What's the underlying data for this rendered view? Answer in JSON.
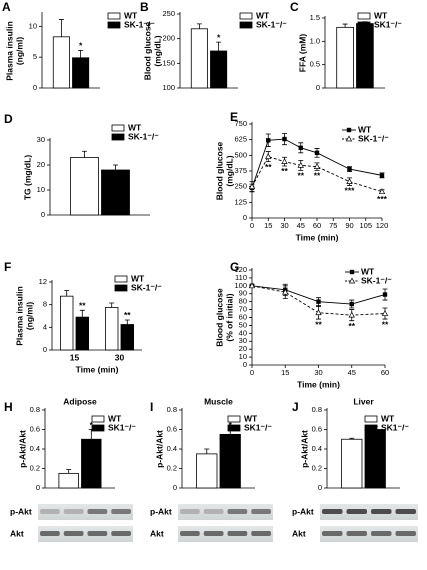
{
  "chart_data": [
    {
      "type": "bar",
      "label": "A",
      "ylabel": [
        "Plasma insulin",
        "(ng/ml)"
      ],
      "ylim": [
        0,
        12
      ],
      "yticks": [
        0,
        5,
        10
      ],
      "series": [
        {
          "name": "WT",
          "color": "#ffffff",
          "values": [
            8.3
          ],
          "errors": [
            2.8
          ],
          "annotations": [
            null
          ]
        },
        {
          "name": "SK-1⁻/⁻",
          "color": "#000000",
          "values": [
            4.9
          ],
          "errors": [
            1.2
          ],
          "annotations": [
            "*"
          ]
        }
      ]
    },
    {
      "type": "bar",
      "label": "B",
      "ylabel": [
        "Blood glucose",
        "(mg/dL)"
      ],
      "ylim": [
        100,
        250
      ],
      "yticks": [
        100,
        150,
        200,
        250
      ],
      "series": [
        {
          "name": "WT",
          "color": "#ffffff",
          "values": [
            220
          ],
          "errors": [
            10
          ],
          "annotations": [
            null
          ]
        },
        {
          "name": "SK-1⁻/⁻",
          "color": "#000000",
          "values": [
            175
          ],
          "errors": [
            18
          ],
          "annotations": [
            "*"
          ]
        }
      ]
    },
    {
      "type": "bar",
      "label": "C",
      "ylabel": [
        "FFA (mM)"
      ],
      "ylim": [
        0,
        1.5
      ],
      "yticks": [
        0,
        0.5,
        {
          "value": 1,
          "label": "1.0"
        },
        1.5
      ],
      "series": [
        {
          "name": "WT",
          "color": "#ffffff",
          "values": [
            1.3
          ],
          "errors": [
            0.07
          ],
          "annotations": [
            null
          ]
        },
        {
          "name": "SK1⁻/⁻",
          "color": "#000000",
          "values": [
            1.38
          ],
          "errors": [
            0.04
          ],
          "annotations": [
            null
          ]
        }
      ]
    },
    {
      "type": "bar",
      "label": "D",
      "ylabel": [
        "TG (mg/dL)"
      ],
      "ylim": [
        0,
        30
      ],
      "yticks": [
        0,
        10,
        20,
        30
      ],
      "series": [
        {
          "name": "WT",
          "color": "#ffffff",
          "values": [
            23
          ],
          "errors": [
            2.5
          ],
          "annotations": [
            null
          ]
        },
        {
          "name": "SK-1⁻/⁻",
          "color": "#000000",
          "values": [
            18
          ],
          "errors": [
            2
          ],
          "annotations": [
            null
          ]
        }
      ]
    },
    {
      "type": "line",
      "label": "E",
      "ylabel": [
        "Blood glucose",
        "(mg/dL)"
      ],
      "xlabel": "Time (min)",
      "x": [
        0,
        15,
        30,
        45,
        60,
        90,
        120
      ],
      "xlim": [
        0,
        120
      ],
      "xticks": [
        0,
        15,
        30,
        45,
        60,
        75,
        90,
        105,
        120
      ],
      "ylim": [
        0,
        750
      ],
      "yticks": [
        0,
        125,
        250,
        375,
        500,
        625,
        750
      ],
      "series": [
        {
          "name": "WT",
          "color": "#000000",
          "marker": "square",
          "dashed": false,
          "values": [
            240,
            620,
            630,
            560,
            520,
            390,
            340
          ],
          "errors": [
            30,
            50,
            45,
            40,
            35,
            20,
            20
          ],
          "annotations": [
            null,
            null,
            null,
            null,
            null,
            null,
            null
          ]
        },
        {
          "name": "SK-1⁻/⁻",
          "color": "#000000",
          "marker": "triangle-open",
          "dashed": true,
          "values": [
            250,
            490,
            450,
            420,
            410,
            290,
            210
          ],
          "errors": [
            40,
            40,
            35,
            40,
            30,
            30,
            15
          ],
          "annotations": [
            null,
            "**",
            "**",
            "**",
            "**",
            "***",
            "***"
          ]
        }
      ]
    },
    {
      "type": "bar",
      "label": "F",
      "ylabel": [
        "Plasma insulin",
        "(ng/ml)"
      ],
      "xlabel": "Time (min)",
      "categories": [
        "15",
        "30"
      ],
      "ylim": [
        0,
        12
      ],
      "yticks": [
        0,
        4,
        8,
        12
      ],
      "series": [
        {
          "name": "WT",
          "color": "#ffffff",
          "values": [
            9.5,
            7.5
          ],
          "errors": [
            1,
            0.8
          ],
          "annotations": [
            null,
            null
          ]
        },
        {
          "name": "SK-1⁻/⁻",
          "color": "#000000",
          "values": [
            5.8,
            4.5
          ],
          "errors": [
            1.2,
            0.8
          ],
          "annotations": [
            "**",
            "**"
          ]
        }
      ]
    },
    {
      "type": "line",
      "label": "G",
      "ylabel": [
        "Blood glucose",
        "(% of initial)"
      ],
      "xlabel": "Time (min)",
      "x": [
        0,
        15,
        30,
        45,
        60
      ],
      "xlim": [
        0,
        60
      ],
      "xticks": [
        0,
        15,
        30,
        45,
        60
      ],
      "ylim": [
        0,
        120
      ],
      "yticks": [
        0,
        10,
        20,
        30,
        40,
        50,
        60,
        70,
        80,
        90,
        100,
        110,
        120
      ],
      "series": [
        {
          "name": "WT",
          "color": "#000000",
          "marker": "square",
          "dashed": false,
          "values": [
            100,
            95,
            80,
            77,
            89
          ],
          "errors": [
            2,
            7,
            5,
            5,
            7
          ],
          "annotations": [
            null,
            null,
            null,
            null,
            null
          ]
        },
        {
          "name": "SK-1⁻/⁻",
          "color": "#000000",
          "marker": "triangle-open",
          "dashed": true,
          "values": [
            100,
            92,
            66,
            63,
            65
          ],
          "errors": [
            2,
            8,
            8,
            7,
            7
          ],
          "annotations": [
            null,
            null,
            "**",
            "**",
            "**"
          ]
        }
      ]
    },
    {
      "type": "bar",
      "label": "H",
      "title": "Adipose",
      "ylabel": [
        "p-Akt/Akt"
      ],
      "ylim": [
        0,
        0.8
      ],
      "yticks": [
        0,
        0.2,
        0.4,
        0.6,
        0.8
      ],
      "blot_labels": [
        "p-Akt",
        "Akt"
      ],
      "series": [
        {
          "name": "WT",
          "color": "#ffffff",
          "values": [
            0.15
          ],
          "errors": [
            0.04
          ],
          "annotations": [
            null
          ]
        },
        {
          "name": "SK1⁻/⁻",
          "color": "#000000",
          "values": [
            0.5
          ],
          "errors": [
            0.1
          ],
          "annotations": [
            "*"
          ]
        }
      ]
    },
    {
      "type": "bar",
      "label": "I",
      "title": "Muscle",
      "ylabel": [
        "p-Akt/Akt"
      ],
      "ylim": [
        0,
        0.8
      ],
      "yticks": [
        0,
        0.2,
        0.4,
        0.6,
        0.8
      ],
      "blot_labels": [
        "p-Akt",
        "Akt"
      ],
      "series": [
        {
          "name": "WT",
          "color": "#ffffff",
          "values": [
            0.35
          ],
          "errors": [
            0.05
          ],
          "annotations": [
            null
          ]
        },
        {
          "name": "SK1⁻/⁻",
          "color": "#000000",
          "values": [
            0.55
          ],
          "errors": [
            0.05
          ],
          "annotations": [
            "*"
          ]
        }
      ]
    },
    {
      "type": "bar",
      "label": "J",
      "title": "Liver",
      "ylabel": [
        "p-Akt/Akt"
      ],
      "ylim": [
        0,
        0.8
      ],
      "yticks": [
        0,
        0.2,
        0.4,
        0.6,
        0.8
      ],
      "blot_labels": [
        "p-Akt",
        "Akt"
      ],
      "series": [
        {
          "name": "WT",
          "color": "#ffffff",
          "values": [
            0.5
          ],
          "errors": [
            0.01
          ],
          "annotations": [
            null
          ]
        },
        {
          "name": "SK1⁻/⁻",
          "color": "#000000",
          "values": [
            0.6
          ],
          "errors": [
            0.03
          ],
          "annotations": [
            null
          ]
        }
      ]
    }
  ]
}
